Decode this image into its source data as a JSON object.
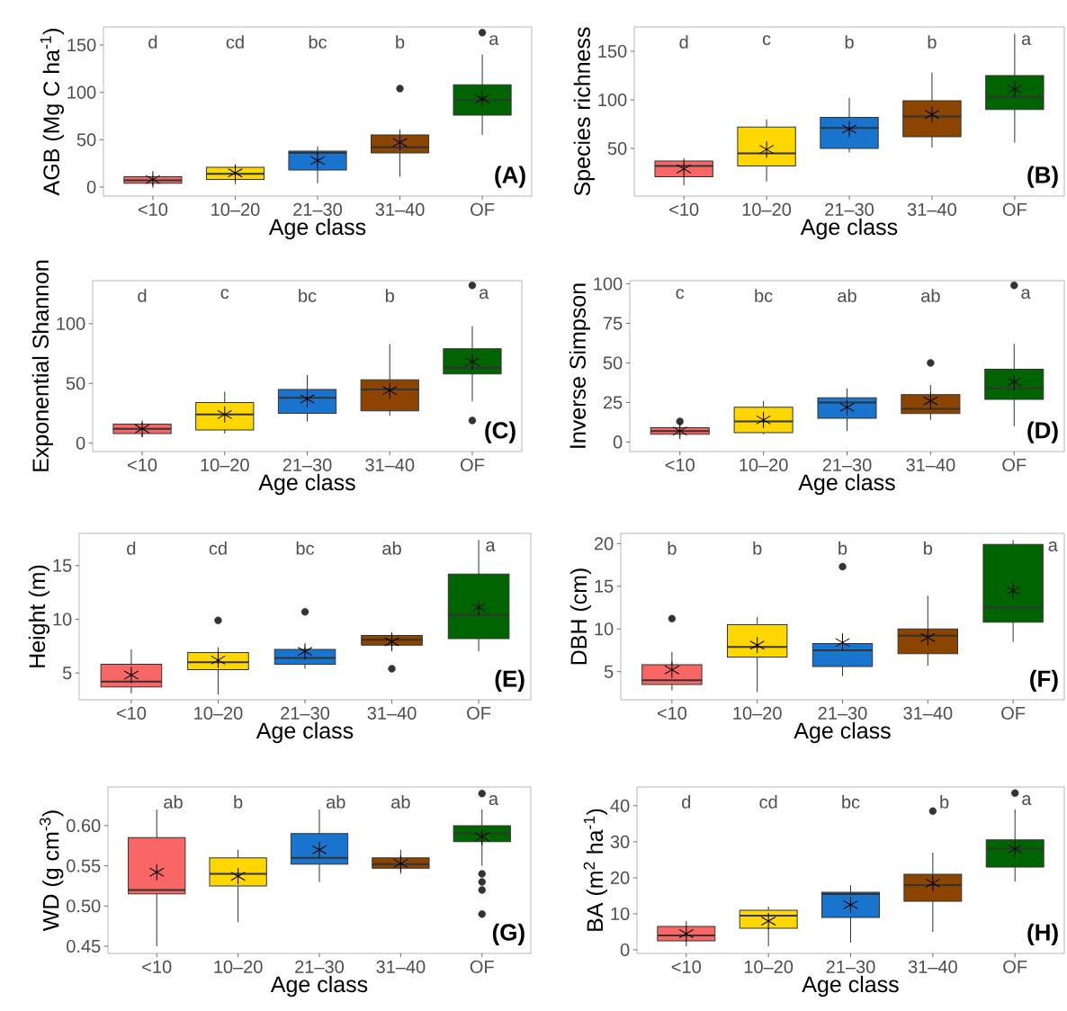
{
  "chart_data": [
    {
      "type": "box",
      "categories": [
        "<10",
        "10–20",
        "21–30",
        "31–40",
        "OF"
      ],
      "xlabel": "Age class",
      "ylabel": "AGB (Mg C ha$^{-1}$)",
      "ylim": [
        -9.5,
        169
      ],
      "yticks": [
        0,
        50,
        100,
        150
      ],
      "colors": [
        "#f86666",
        "#ffd700",
        "#1874cd",
        "#8b4500",
        "#006400"
      ],
      "boxes": [
        {
          "low": 2,
          "q1": 4,
          "median": 7,
          "q3": 11,
          "high": 12,
          "mean": 8
        },
        {
          "low": 3,
          "q1": 8,
          "median": 14,
          "q3": 21,
          "high": 24,
          "mean": 15
        },
        {
          "low": 4,
          "q1": 18,
          "median": 36,
          "q3": 38,
          "high": 43,
          "mean": 28
        },
        {
          "low": 11,
          "q1": 36,
          "median": 42,
          "q3": 55,
          "high": 61,
          "mean": 47,
          "outliers": [
            104
          ]
        },
        {
          "low": 55,
          "q1": 76,
          "median": 92,
          "q3": 108,
          "high": 140,
          "mean": 93,
          "outliers": [
            163
          ]
        }
      ],
      "annotations": [
        "d",
        "cd",
        "bc",
        "b",
        "a",
        "(A)"
      ]
    },
    {
      "type": "box",
      "categories": [
        "<10",
        "10–20",
        "21–30",
        "31–40",
        "OF"
      ],
      "xlabel": "Age class",
      "ylabel": "Species richness",
      "ylim": [
        1,
        175
      ],
      "yticks": [
        50,
        100,
        150
      ],
      "colors": [
        "#f86666",
        "#ffd700",
        "#1874cd",
        "#8b4500",
        "#006400"
      ],
      "boxes": [
        {
          "low": 12,
          "q1": 21,
          "median": 32,
          "q3": 37,
          "high": 40,
          "mean": 29
        },
        {
          "low": 16,
          "q1": 32,
          "median": 45,
          "q3": 72,
          "high": 80,
          "mean": 49
        },
        {
          "low": 46,
          "q1": 50,
          "median": 71,
          "q3": 82,
          "high": 102,
          "mean": 70
        },
        {
          "low": 51,
          "q1": 62,
          "median": 83,
          "q3": 99,
          "high": 128,
          "mean": 85
        },
        {
          "low": 56,
          "q1": 90,
          "median": 103,
          "q3": 125,
          "high": 168,
          "mean": 111
        }
      ],
      "annotations": [
        "d",
        "c",
        "b",
        "b",
        "a",
        "(B)"
      ]
    },
    {
      "type": "box",
      "categories": [
        "<10",
        "10–20",
        "21–30",
        "31–40",
        "OF"
      ],
      "xlabel": "Age class",
      "ylabel": "Exponential Shannon",
      "ylim": [
        -7,
        136
      ],
      "yticks": [
        0,
        50,
        100
      ],
      "colors": [
        "#f86666",
        "#ffd700",
        "#1874cd",
        "#8b4500",
        "#006400"
      ],
      "boxes": [
        {
          "low": 5,
          "q1": 8,
          "median": 12,
          "q3": 16,
          "high": 17,
          "mean": 12
        },
        {
          "low": 8,
          "q1": 11,
          "median": 24,
          "q3": 34,
          "high": 43,
          "mean": 24
        },
        {
          "low": 18,
          "q1": 25,
          "median": 38,
          "q3": 45,
          "high": 57,
          "mean": 37
        },
        {
          "low": 23,
          "q1": 27,
          "median": 45,
          "q3": 53,
          "high": 83,
          "mean": 44
        },
        {
          "low": 35,
          "q1": 58,
          "median": 63,
          "q3": 79,
          "high": 98,
          "mean": 68,
          "outliers": [
            132,
            19
          ]
        }
      ],
      "annotations": [
        "d",
        "c",
        "bc",
        "b",
        "a",
        "(C)"
      ]
    },
    {
      "type": "box",
      "categories": [
        "<10",
        "10–20",
        "21–30",
        "31–40",
        "OF"
      ],
      "xlabel": "Age class",
      "ylabel": "Inverse Simpson",
      "ylim": [
        -6,
        102
      ],
      "yticks": [
        0,
        25,
        50,
        75,
        100
      ],
      "colors": [
        "#f86666",
        "#ffd700",
        "#1874cd",
        "#8b4500",
        "#006400"
      ],
      "boxes": [
        {
          "low": 5,
          "q1": 5,
          "median": 7,
          "q3": 9,
          "high": 9,
          "mean": 7,
          "outliers": [
            13
          ]
        },
        {
          "low": 5,
          "q1": 6,
          "median": 13,
          "q3": 22,
          "high": 26,
          "mean": 14
        },
        {
          "low": 7,
          "q1": 15,
          "median": 25,
          "q3": 28,
          "high": 34,
          "mean": 22
        },
        {
          "low": 14,
          "q1": 18,
          "median": 21,
          "q3": 30,
          "high": 36,
          "mean": 26,
          "outliers": [
            50
          ]
        },
        {
          "low": 10,
          "q1": 27,
          "median": 34,
          "q3": 46,
          "high": 62,
          "mean": 38,
          "outliers": [
            99
          ]
        }
      ],
      "annotations": [
        "c",
        "bc",
        "ab",
        "ab",
        "a",
        "(D)"
      ]
    },
    {
      "type": "box",
      "categories": [
        "<10",
        "10–20",
        "21–30",
        "31–40",
        "OF"
      ],
      "xlabel": "Age class",
      "ylabel": "Height (m)",
      "ylim": [
        2.5,
        18
      ],
      "yticks": [
        5,
        10,
        15
      ],
      "colors": [
        "#f86666",
        "#ffd700",
        "#1874cd",
        "#8b4500",
        "#006400"
      ],
      "boxes": [
        {
          "low": 3.1,
          "q1": 3.7,
          "median": 4.2,
          "q3": 5.8,
          "high": 7.2,
          "mean": 4.8
        },
        {
          "low": 3.0,
          "q1": 5.3,
          "median": 6.0,
          "q3": 6.9,
          "high": 7.4,
          "mean": 6.2,
          "outliers": [
            9.9
          ]
        },
        {
          "low": 5.4,
          "q1": 5.8,
          "median": 6.4,
          "q3": 7.2,
          "high": 7.4,
          "mean": 7.0,
          "outliers": [
            10.7
          ]
        },
        {
          "low": 7.0,
          "q1": 7.6,
          "median": 8.1,
          "q3": 8.5,
          "high": 8.8,
          "mean": 7.9,
          "outliers": [
            5.4
          ]
        },
        {
          "low": 7.0,
          "q1": 8.2,
          "median": 10.4,
          "q3": 14.2,
          "high": 17.4,
          "mean": 11.1
        }
      ],
      "annotations": [
        "d",
        "cd",
        "bc",
        "ab",
        "a",
        "(E)"
      ]
    },
    {
      "type": "box",
      "categories": [
        "<10",
        "10–20",
        "21–30",
        "31–40",
        "OF"
      ],
      "xlabel": "Age class",
      "ylabel": "DBH (cm)",
      "ylim": [
        1.7,
        21.2
      ],
      "yticks": [
        5,
        10,
        15,
        20
      ],
      "colors": [
        "#f86666",
        "#ffd700",
        "#1874cd",
        "#8b4500",
        "#006400"
      ],
      "boxes": [
        {
          "low": 2.8,
          "q1": 3.5,
          "median": 4.0,
          "q3": 5.8,
          "high": 7.3,
          "mean": 5.2,
          "outliers": [
            11.2
          ]
        },
        {
          "low": 2.6,
          "q1": 6.7,
          "median": 7.9,
          "q3": 10.5,
          "high": 11.4,
          "mean": 8.1
        },
        {
          "low": 4.5,
          "q1": 5.6,
          "median": 7.5,
          "q3": 8.3,
          "high": 9.5,
          "mean": 8.4,
          "outliers": [
            17.3
          ]
        },
        {
          "low": 5.7,
          "q1": 7.1,
          "median": 9.2,
          "q3": 10.0,
          "high": 13.9,
          "mean": 9.0
        },
        {
          "low": 8.5,
          "q1": 10.8,
          "median": 12.5,
          "q3": 19.9,
          "high": 20.4,
          "mean": 14.5
        }
      ],
      "annotations": [
        "b",
        "b",
        "b",
        "b",
        "a",
        "(F)"
      ]
    },
    {
      "type": "box",
      "categories": [
        "<10",
        "10–20",
        "21–30",
        "31–40",
        "OF"
      ],
      "xlabel": "Age class",
      "ylabel": "WD (g cm$^{-3}$)",
      "ylim": [
        0.441,
        0.648
      ],
      "yticks": [
        0.45,
        {
          "value": 0.5,
          "label": "0.50"
        },
        0.55,
        {
          "value": 0.6,
          "label": "0.60"
        }
      ],
      "colors": [
        "#f86666",
        "#ffd700",
        "#1874cd",
        "#8b4500",
        "#006400"
      ],
      "boxes": [
        {
          "low": 0.45,
          "q1": 0.515,
          "median": 0.52,
          "q3": 0.585,
          "high": 0.62,
          "mean": 0.542
        },
        {
          "low": 0.48,
          "q1": 0.525,
          "median": 0.54,
          "q3": 0.56,
          "high": 0.57,
          "mean": 0.537
        },
        {
          "low": 0.53,
          "q1": 0.552,
          "median": 0.56,
          "q3": 0.59,
          "high": 0.62,
          "mean": 0.57
        },
        {
          "low": 0.54,
          "q1": 0.547,
          "median": 0.552,
          "q3": 0.56,
          "high": 0.57,
          "mean": 0.553
        },
        {
          "low": 0.55,
          "q1": 0.58,
          "median": 0.59,
          "q3": 0.6,
          "high": 0.62,
          "mean": 0.586,
          "outliers": [
            0.64,
            0.54,
            0.53,
            0.52,
            0.49
          ]
        }
      ],
      "annotations": [
        "ab",
        "b",
        "ab",
        "ab",
        "a",
        "(G)"
      ]
    },
    {
      "type": "box",
      "categories": [
        "<10",
        "10–20",
        "21–30",
        "31–40",
        "OF"
      ],
      "xlabel": "Age class",
      "ylabel": "BA (m$^{2}$ ha$^{-1}$)",
      "ylim": [
        -1,
        45.2
      ],
      "yticks": [
        0,
        10,
        20,
        30,
        40
      ],
      "colors": [
        "#f86666",
        "#ffd700",
        "#1874cd",
        "#8b4500",
        "#006400"
      ],
      "boxes": [
        {
          "low": 1,
          "q1": 2.5,
          "median": 4,
          "q3": 6.5,
          "high": 8,
          "mean": 4.5
        },
        {
          "low": 1,
          "q1": 6,
          "median": 9.5,
          "q3": 11,
          "high": 12,
          "mean": 8
        },
        {
          "low": 2,
          "q1": 9,
          "median": 15.5,
          "q3": 16,
          "high": 18,
          "mean": 12.5
        },
        {
          "low": 5,
          "q1": 13.5,
          "median": 18,
          "q3": 21,
          "high": 27,
          "mean": 18.5,
          "outliers": [
            38.5
          ]
        },
        {
          "low": 19,
          "q1": 23,
          "median": 28,
          "q3": 30.5,
          "high": 39,
          "mean": 28,
          "outliers": [
            43.5
          ]
        }
      ],
      "annotations": [
        "d",
        "cd",
        "bc",
        "b",
        "a",
        "(H)"
      ]
    }
  ]
}
